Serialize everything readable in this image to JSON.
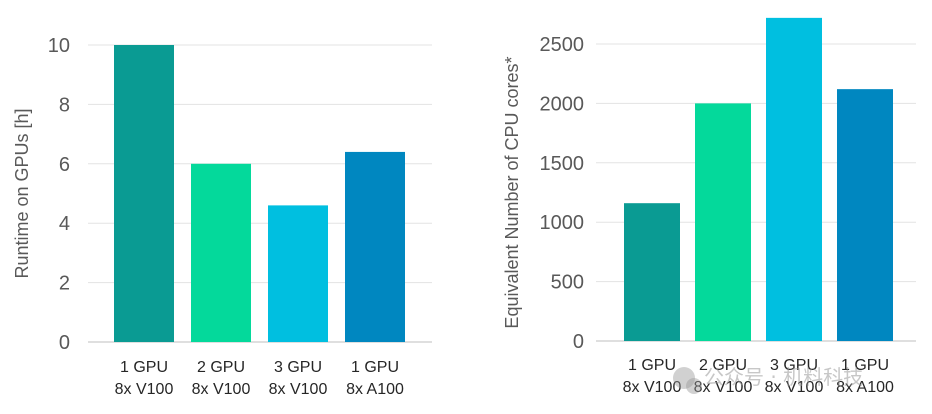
{
  "chart_data": [
    {
      "type": "bar",
      "ylabel": "Runtime on GPUs [h]",
      "xlabel": "",
      "ylim": [
        0,
        10
      ],
      "yticks": [
        0,
        2,
        4,
        6,
        8,
        10
      ],
      "grid": true,
      "categories": [
        [
          "1 GPU",
          "8x V100"
        ],
        [
          "2 GPU",
          "8x V100"
        ],
        [
          "3 GPU",
          "8x V100"
        ],
        [
          "1 GPU",
          "8x A100"
        ]
      ],
      "values": [
        10,
        6,
        4.6,
        6.4
      ],
      "colors": [
        "#0a9b93",
        "#04d99b",
        "#00bfe0",
        "#0087c0"
      ]
    },
    {
      "type": "bar",
      "ylabel": "Equivalent Number of CPU cores*",
      "xlabel": "",
      "ylim": [
        0,
        2700
      ],
      "yticks": [
        0,
        500,
        1000,
        1500,
        2000,
        2500
      ],
      "grid": true,
      "categories": [
        [
          "1 GPU",
          "8x V100"
        ],
        [
          "2 GPU",
          "8x V100"
        ],
        [
          "3 GPU",
          "8x V100"
        ],
        [
          "1 GPU",
          "8x A100"
        ]
      ],
      "values": [
        1160,
        2000,
        2720,
        2120
      ],
      "colors": [
        "#0a9b93",
        "#04d99b",
        "#00bfe0",
        "#0087c0"
      ]
    }
  ],
  "watermark": {
    "text": "公众号 · 机料科技",
    "icon": "wechat-icon"
  }
}
